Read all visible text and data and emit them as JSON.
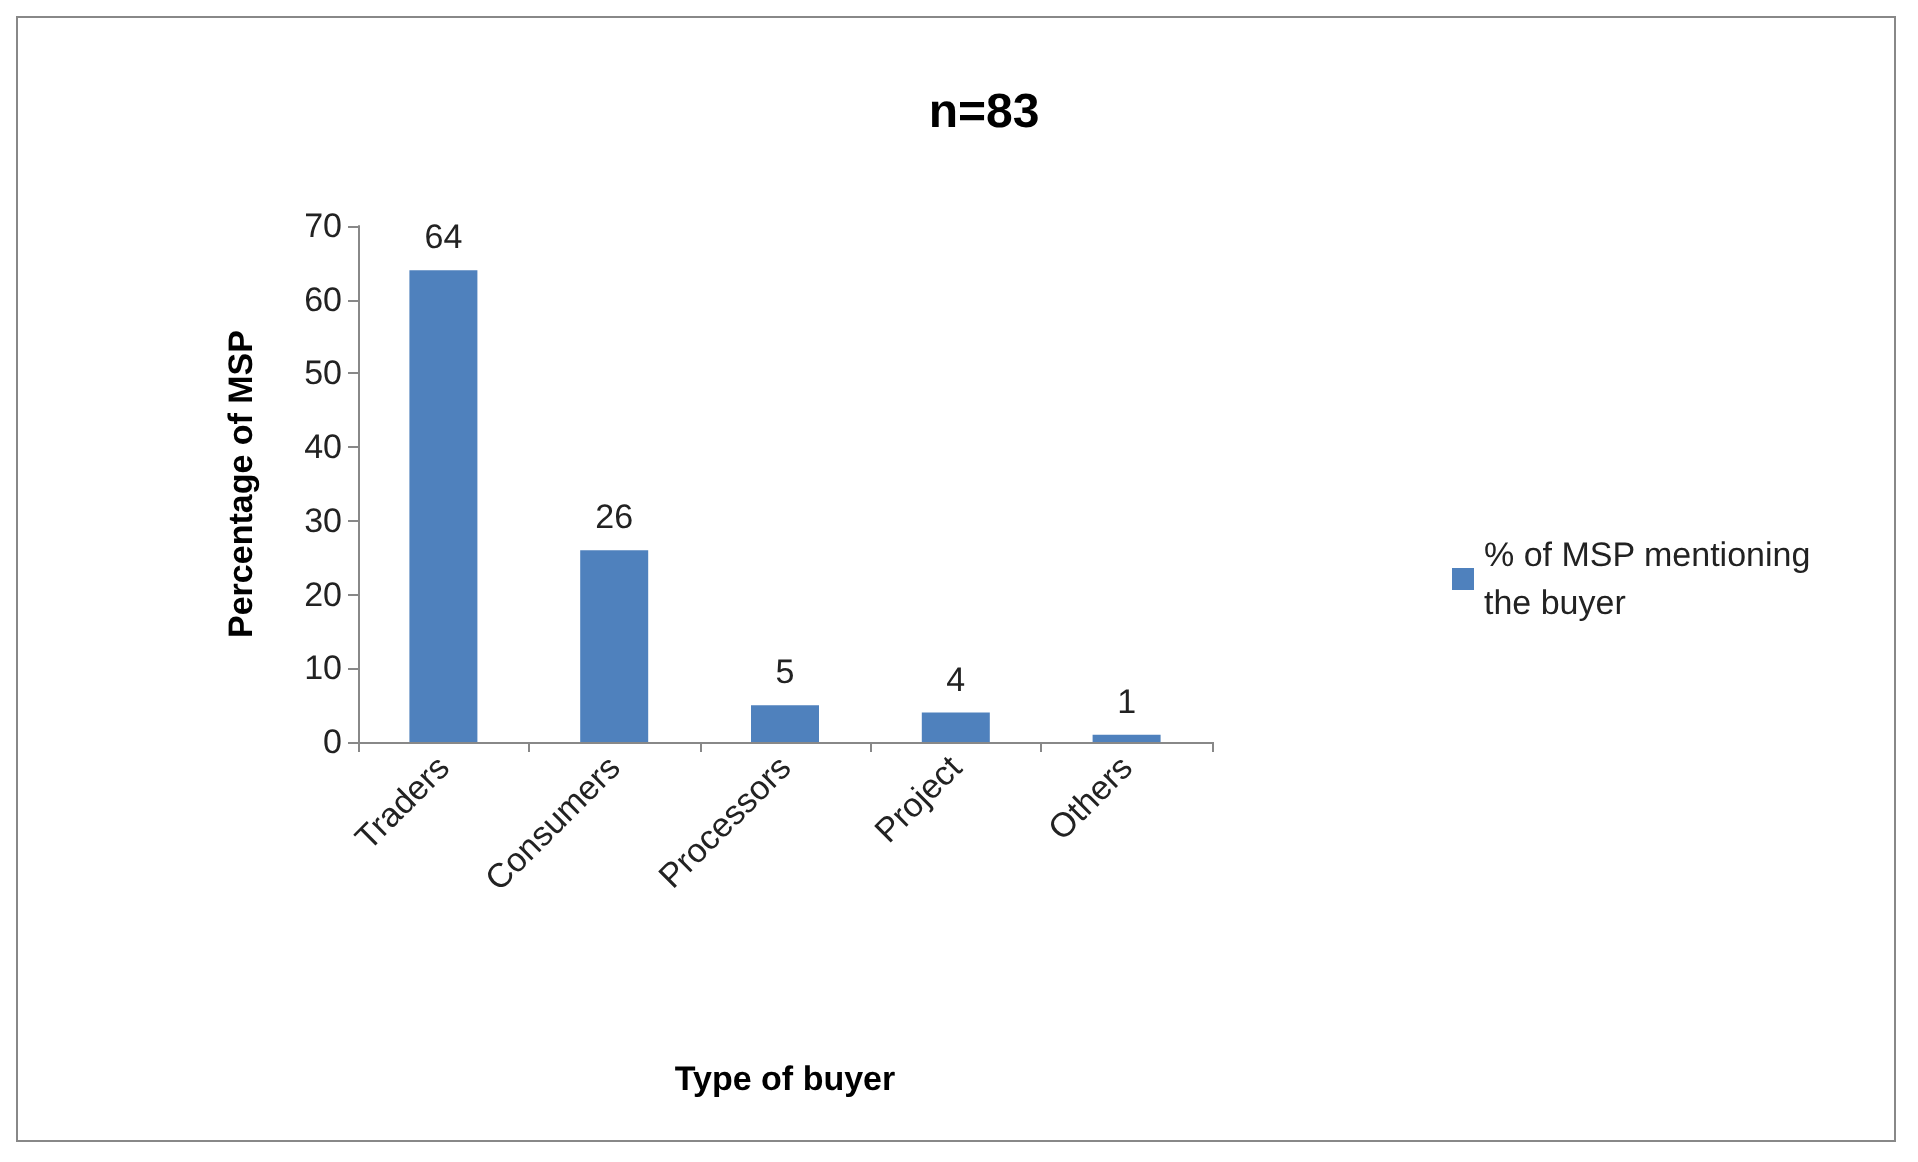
{
  "chart_data": {
    "type": "bar",
    "title": "n=83",
    "xlabel": "Type of buyer",
    "ylabel": "Percentage of MSP",
    "categories": [
      "Traders",
      "Consumers",
      "Processors",
      "Project",
      "Others"
    ],
    "series": [
      {
        "name": "% of MSP mentioning the buyer",
        "color": "#4f81bd",
        "values": [
          64,
          26,
          5,
          4,
          1
        ]
      }
    ],
    "ylim": [
      0,
      70
    ],
    "yticks": [
      0,
      10,
      20,
      30,
      40,
      50,
      60,
      70
    ],
    "data_labels": true,
    "legend": "right",
    "grid": false
  }
}
